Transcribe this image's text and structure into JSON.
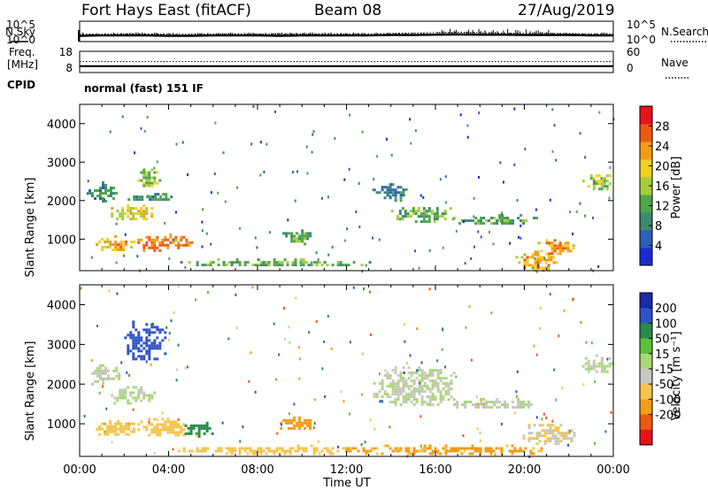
{
  "header": {
    "title": "Fort Hays East (fitACF)",
    "beam": "Beam 08",
    "date": "27/Aug/2019"
  },
  "chart_data": [
    {
      "type": "line",
      "panel": "noise",
      "left_label": "N.Sky",
      "right_label": "N.Search",
      "left_ticks": [
        "10^5",
        "10^0"
      ],
      "right_ticks": [
        "10^5",
        "10^0"
      ],
      "yscale": "log",
      "ylim": [
        1,
        100000
      ],
      "series": [
        {
          "name": "N.Sky",
          "style": "solid",
          "level_log10": [
            1.4,
            1.5,
            1.5,
            1.5,
            1.4,
            1.4,
            1.5,
            1.5,
            1.5,
            1.4,
            1.5,
            1.5,
            1.5,
            1.5,
            1.6,
            1.6,
            1.7,
            1.8,
            1.7,
            1.7,
            1.6,
            1.6,
            1.6,
            1.5,
            1.5
          ]
        },
        {
          "name": "N.Search",
          "style": "dotted",
          "level_log10": [
            1.8,
            1.8,
            1.9,
            1.9,
            1.8,
            1.8,
            1.9,
            1.9,
            1.9,
            1.8,
            1.9,
            1.9,
            1.9,
            1.9,
            2.0,
            2.1,
            2.2,
            2.3,
            2.2,
            2.1,
            2.0,
            2.0,
            2.0,
            1.9,
            1.9
          ]
        }
      ]
    },
    {
      "type": "line",
      "panel": "frequency",
      "left_label_line1": "Freq.",
      "left_label_line2": "[MHz]",
      "right_label": "Nave",
      "left_ticks": [
        "18",
        "8"
      ],
      "right_ticks": [
        "60",
        "0"
      ],
      "ylim": [
        8,
        18
      ],
      "series": [
        {
          "name": "Freq.",
          "style": "solid",
          "value": 11.0
        },
        {
          "name": "Nave",
          "style": "dotted",
          "value": 31
        }
      ]
    },
    {
      "type": "heatmap",
      "panel": "cpid",
      "label": "CPID",
      "text": "normal (fast) 151 IF"
    },
    {
      "type": "heatmap",
      "panel": "power",
      "ylabel": "Slant Range [km]",
      "y_ticks": [
        "4000",
        "3000",
        "2000",
        "1000"
      ],
      "ylim": [
        180,
        4500
      ],
      "x_ticks": [
        "00:00",
        "04:00",
        "08:00",
        "12:00",
        "16:00",
        "20:00",
        "00:00"
      ],
      "xlim": [
        0,
        24
      ],
      "colorbar": {
        "label": "Power [dB]",
        "ticks": [
          "28",
          "24",
          "20",
          "16",
          "12",
          "8",
          "4"
        ],
        "levels": [
          0,
          4,
          8,
          12,
          16,
          20,
          24,
          28,
          32
        ],
        "colors": [
          "#1a2bd6",
          "#2d5fb8",
          "#3d8a6e",
          "#4fa64a",
          "#a6cc3c",
          "#f0d024",
          "#f39c17",
          "#ec5a12",
          "#e6141a"
        ]
      },
      "echo_regions": [
        {
          "t0": 0.4,
          "t1": 1.6,
          "r0": 2000,
          "r1": 2500,
          "value": 11
        },
        {
          "t0": 1.4,
          "t1": 3.4,
          "r0": 1500,
          "r1": 1900,
          "value": 21
        },
        {
          "t0": 2.6,
          "t1": 3.6,
          "r0": 2300,
          "r1": 2900,
          "value": 17
        },
        {
          "t0": 0.6,
          "t1": 2.4,
          "r0": 700,
          "r1": 1100,
          "value": 24
        },
        {
          "t0": 2.6,
          "t1": 5.0,
          "r0": 700,
          "r1": 1150,
          "value": 30
        },
        {
          "t0": 1.8,
          "t1": 4.4,
          "r0": 2000,
          "r1": 2200,
          "value": 10
        },
        {
          "t0": 4.4,
          "t1": 13.0,
          "r0": 300,
          "r1": 500,
          "value": 15
        },
        {
          "t0": 9.0,
          "t1": 10.4,
          "r0": 900,
          "r1": 1250,
          "value": 14
        },
        {
          "t0": 13.2,
          "t1": 14.6,
          "r0": 2000,
          "r1": 2450,
          "value": 9
        },
        {
          "t0": 14.0,
          "t1": 16.8,
          "r0": 1450,
          "r1": 1900,
          "value": 14
        },
        {
          "t0": 16.8,
          "t1": 20.6,
          "r0": 1400,
          "r1": 1650,
          "value": 13
        },
        {
          "t0": 19.6,
          "t1": 21.4,
          "r0": 200,
          "r1": 700,
          "value": 24
        },
        {
          "t0": 20.6,
          "t1": 22.2,
          "r0": 650,
          "r1": 1000,
          "value": 27
        },
        {
          "t0": 22.6,
          "t1": 24.0,
          "r0": 2300,
          "r1": 2750,
          "value": 18
        }
      ]
    },
    {
      "type": "heatmap",
      "panel": "velocity",
      "ylabel": "Slant Range [km]",
      "y_ticks": [
        "4000",
        "3000",
        "2000",
        "1000"
      ],
      "ylim": [
        180,
        4500
      ],
      "x_ticks": [
        "00:00",
        "04:00",
        "08:00",
        "12:00",
        "16:00",
        "20:00",
        "00:00"
      ],
      "xlim": [
        0,
        24
      ],
      "xlabel": "Time UT",
      "colorbar": {
        "label": "Velocity [m s⁻¹]",
        "ticks": [
          "200",
          "100",
          "50",
          "15",
          "-15",
          "-50",
          "-100",
          "-200"
        ],
        "colors": [
          "#1a2aa8",
          "#2e54c8",
          "#2a8a4a",
          "#5cc13a",
          "#a9d874",
          "#c8c8c0",
          "#f5c44d",
          "#f39c17",
          "#ec5a12",
          "#e6141a"
        ]
      },
      "echo_regions": [
        {
          "t0": 2.0,
          "t1": 3.8,
          "r0": 2600,
          "r1": 3600,
          "value": 150
        },
        {
          "t0": 0.4,
          "t1": 1.8,
          "r0": 2000,
          "r1": 2500,
          "value": 0
        },
        {
          "t0": 1.4,
          "t1": 3.4,
          "r0": 1500,
          "r1": 1950,
          "value": 0
        },
        {
          "t0": 0.6,
          "t1": 2.6,
          "r0": 700,
          "r1": 1100,
          "value": -40
        },
        {
          "t0": 2.6,
          "t1": 5.0,
          "r0": 700,
          "r1": 1150,
          "value": -30
        },
        {
          "t0": 4.6,
          "t1": 6.0,
          "r0": 700,
          "r1": 1050,
          "value": 80
        },
        {
          "t0": 4.4,
          "t1": 12.0,
          "r0": 250,
          "r1": 480,
          "value": -30
        },
        {
          "t0": 12.0,
          "t1": 21.0,
          "r0": 250,
          "r1": 480,
          "value": -60
        },
        {
          "t0": 9.0,
          "t1": 10.4,
          "r0": 850,
          "r1": 1250,
          "value": -80
        },
        {
          "t0": 13.2,
          "t1": 16.8,
          "r0": 1450,
          "r1": 2450,
          "value": 0
        },
        {
          "t0": 16.8,
          "t1": 20.6,
          "r0": 1400,
          "r1": 1650,
          "value": 0
        },
        {
          "t0": 19.8,
          "t1": 22.2,
          "r0": 500,
          "r1": 1000,
          "value": -10
        },
        {
          "t0": 22.6,
          "t1": 24.0,
          "r0": 2300,
          "r1": 2750,
          "value": 0
        }
      ]
    }
  ]
}
